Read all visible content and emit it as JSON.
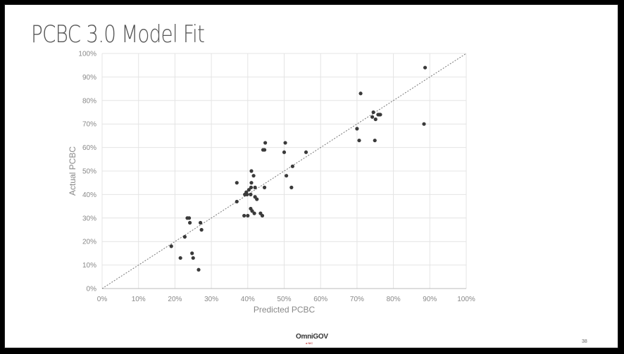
{
  "slide": {
    "title": "PCBC 3.0 Model Fit",
    "logo_text": "OmniGOV",
    "logo_subtext": "a NIC",
    "page_number": "38"
  },
  "colors": {
    "points": "#3a3a3a",
    "reference_line": "#777777",
    "grid": "#e4e4e4",
    "title": "#555555"
  },
  "chart_data": {
    "type": "scatter",
    "title": "",
    "xlabel": "Predicted PCBC",
    "ylabel": "Actual PCBC",
    "xlim": [
      0,
      100
    ],
    "ylim": [
      0,
      100
    ],
    "x_ticks": [
      "0%",
      "10%",
      "20%",
      "30%",
      "40%",
      "50%",
      "60%",
      "70%",
      "80%",
      "90%",
      "100%"
    ],
    "y_ticks": [
      "0%",
      "10%",
      "20%",
      "30%",
      "40%",
      "50%",
      "60%",
      "70%",
      "80%",
      "90%",
      "100%"
    ],
    "grid": true,
    "legend": "none",
    "reference_line": {
      "from": [
        0,
        0
      ],
      "to": [
        100,
        100
      ],
      "style": "dotted"
    },
    "series": [
      {
        "points": [
          [
            19,
            18
          ],
          [
            21.5,
            13
          ],
          [
            22.7,
            22
          ],
          [
            23.4,
            30
          ],
          [
            23.9,
            30
          ],
          [
            24.1,
            28
          ],
          [
            24.7,
            15
          ],
          [
            25,
            13
          ],
          [
            26.5,
            8
          ],
          [
            27,
            28
          ],
          [
            27.3,
            25
          ],
          [
            37,
            37
          ],
          [
            37,
            45
          ],
          [
            39,
            31
          ],
          [
            39.2,
            40
          ],
          [
            39.6,
            41
          ],
          [
            39.8,
            40
          ],
          [
            40,
            31
          ],
          [
            40.3,
            42
          ],
          [
            40.8,
            34
          ],
          [
            40.8,
            40
          ],
          [
            40.9,
            43
          ],
          [
            41,
            45
          ],
          [
            41,
            50
          ],
          [
            41.2,
            33
          ],
          [
            41.6,
            48
          ],
          [
            41.8,
            32
          ],
          [
            42,
            43
          ],
          [
            42,
            39
          ],
          [
            42.5,
            38
          ],
          [
            43.5,
            32
          ],
          [
            44,
            31
          ],
          [
            44.2,
            59
          ],
          [
            44.6,
            59
          ],
          [
            44.6,
            43
          ],
          [
            44.8,
            62
          ],
          [
            50,
            58
          ],
          [
            50.3,
            62
          ],
          [
            50.6,
            48
          ],
          [
            52,
            43
          ],
          [
            52.3,
            52
          ],
          [
            56,
            58
          ],
          [
            70,
            68
          ],
          [
            70.6,
            63
          ],
          [
            71,
            83
          ],
          [
            74.2,
            73
          ],
          [
            74.5,
            75
          ],
          [
            74.9,
            63
          ],
          [
            75.1,
            72
          ],
          [
            75.8,
            74
          ],
          [
            76.1,
            74
          ],
          [
            76.4,
            74
          ],
          [
            88.4,
            70
          ],
          [
            88.7,
            94
          ]
        ]
      }
    ]
  }
}
